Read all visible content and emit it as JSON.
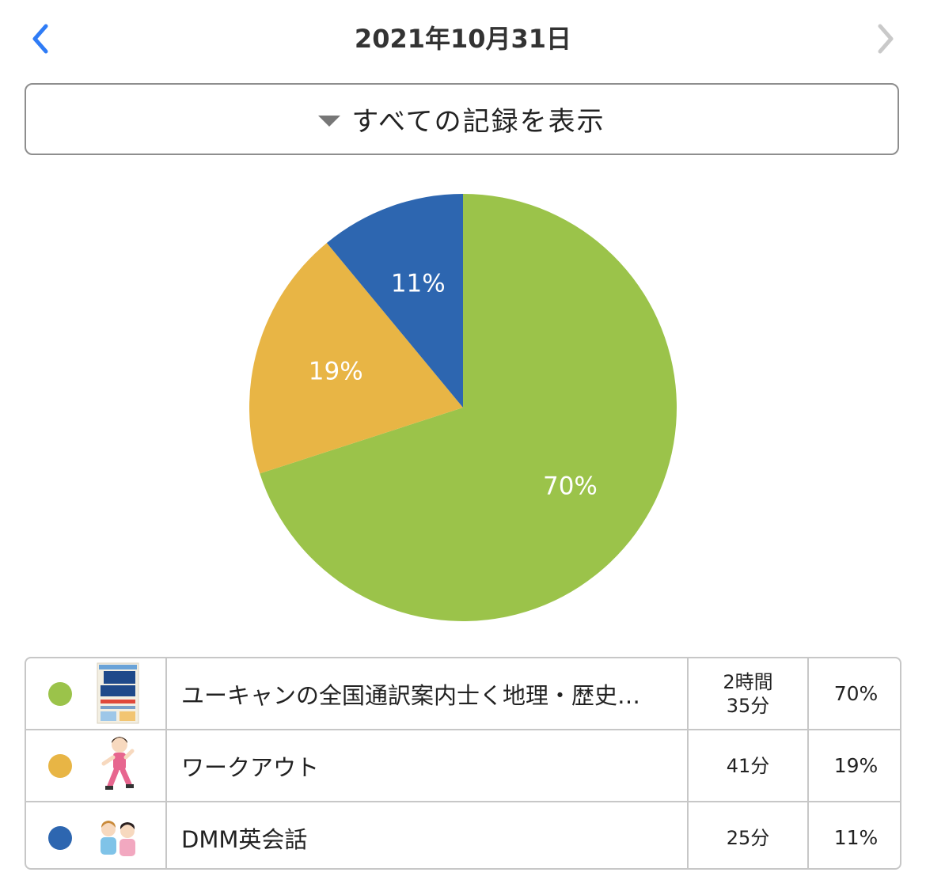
{
  "header": {
    "date": "2021年10月31日",
    "prev_icon": "chevron-left-icon",
    "next_icon": "chevron-right-icon",
    "prev_color": "#2f7cf6",
    "next_color": "#c9c9c9"
  },
  "filter": {
    "label": "すべての記録を表示",
    "icon": "triangle-down-icon"
  },
  "chart_data": {
    "type": "pie",
    "slices": [
      {
        "label": "ユーキャンの全国通訳案内士く地理・歴史…",
        "value": 70,
        "display": "70%",
        "color": "#9bc34a"
      },
      {
        "label": "ワークアウト",
        "value": 19,
        "display": "19%",
        "color": "#e8b545"
      },
      {
        "label": "DMM英会話",
        "value": 11,
        "display": "11%",
        "color": "#2d66b0"
      }
    ]
  },
  "legend": {
    "rows": [
      {
        "name": "ユーキャンの全国通訳案内士く地理・歴史…",
        "time_line1": "2時間",
        "time_line2": "35分",
        "percent": "70%",
        "color": "#9bc34a",
        "thumb_icon": "book-cover-icon"
      },
      {
        "name": "ワークアウト",
        "time_line1": "41分",
        "time_line2": "",
        "percent": "19%",
        "color": "#e8b545",
        "thumb_icon": "workout-person-icon"
      },
      {
        "name": "DMM英会話",
        "time_line1": "25分",
        "time_line2": "",
        "percent": "11%",
        "color": "#2d66b0",
        "thumb_icon": "conversation-people-icon"
      }
    ]
  }
}
